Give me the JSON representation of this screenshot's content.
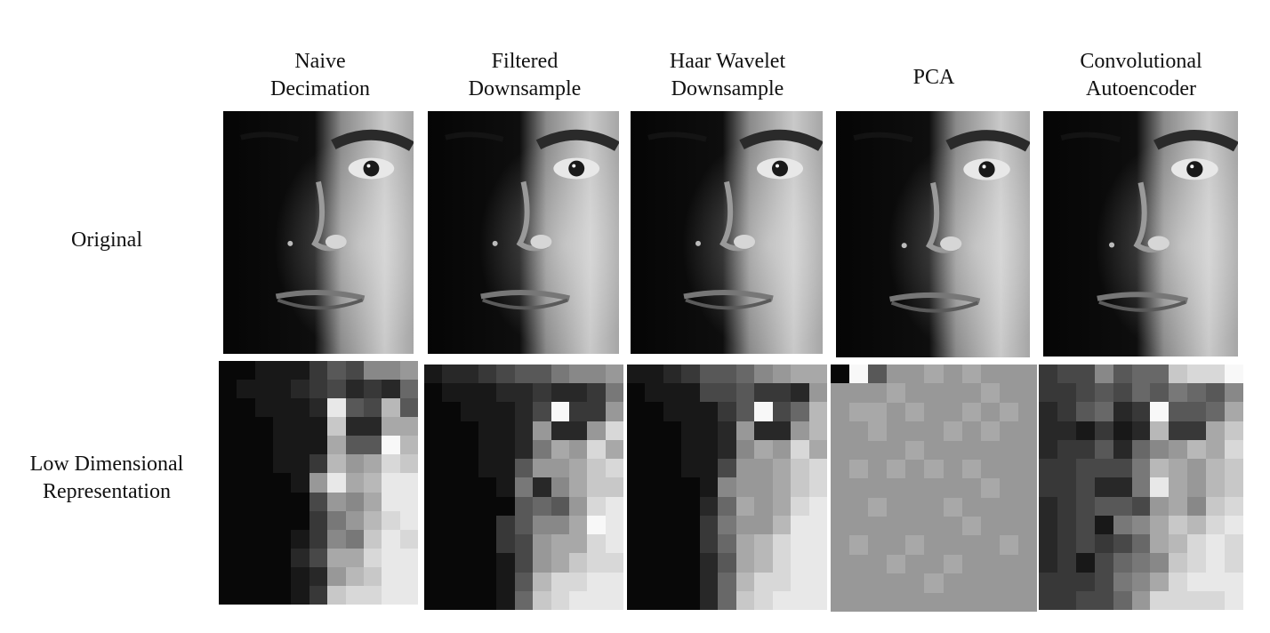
{
  "columns": [
    {
      "line1": "Naive",
      "line2": "Decimation"
    },
    {
      "line1": "Filtered",
      "line2": "Downsample"
    },
    {
      "line1": "Haar Wavelet",
      "line2": "Downsample"
    },
    {
      "line1": "PCA",
      "line2": ""
    },
    {
      "line1": "Convolutional",
      "line2": "Autoencoder"
    }
  ],
  "rows": [
    {
      "line1": "Original",
      "line2": ""
    },
    {
      "line1": "Low Dimensional",
      "line2": "Representation"
    }
  ]
}
